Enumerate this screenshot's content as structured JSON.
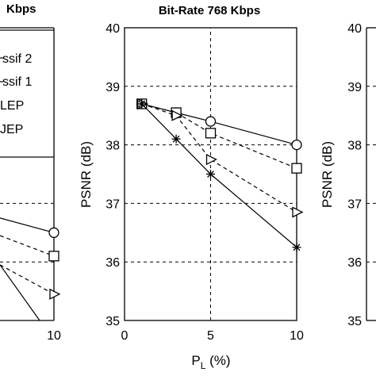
{
  "chart_data": [
    {
      "type": "line",
      "title": "Kbps",
      "xlabel": "",
      "ylabel": "",
      "x_ticks": [
        "10"
      ],
      "legend": {
        "placement": "top-right",
        "entries": [
          "ssif 2",
          "ssif 1",
          "LEP",
          "JEP"
        ]
      },
      "series": [
        {
          "marker": "circle",
          "line": "solid",
          "points": [
            [
              10,
              36.5
            ]
          ]
        },
        {
          "marker": "square",
          "line": "dashed",
          "points": [
            [
              10,
              36.1
            ]
          ]
        },
        {
          "marker": "triangle",
          "line": "dashed",
          "points": [
            [
              10,
              35.45
            ]
          ]
        },
        {
          "marker": "star",
          "line": "solid",
          "points": []
        }
      ]
    },
    {
      "type": "line",
      "title": "Bit-Rate 768 Kbps",
      "xlabel": "P_L (%)",
      "xlabel_main": "P",
      "xlabel_sub": "L",
      "xlabel_rest": " (%)",
      "ylabel": "PSNR (dB)",
      "xlim": [
        0,
        10
      ],
      "ylim": [
        35,
        40
      ],
      "x_ticks": [
        "0",
        "5",
        "10"
      ],
      "y_ticks": [
        "35",
        "36",
        "37",
        "38",
        "39",
        "40"
      ],
      "grid": true,
      "series": [
        {
          "marker": "circle",
          "line": "solid",
          "points": [
            [
              1,
              38.7
            ],
            [
              3,
              38.55
            ],
            [
              5,
              38.4
            ],
            [
              10,
              38.0
            ]
          ]
        },
        {
          "marker": "square",
          "line": "dashed",
          "points": [
            [
              1,
              38.7
            ],
            [
              3,
              38.55
            ],
            [
              5,
              38.2
            ],
            [
              10,
              37.6
            ]
          ]
        },
        {
          "marker": "triangle",
          "line": "dashed",
          "points": [
            [
              1,
              38.7
            ],
            [
              3,
              38.5
            ],
            [
              5,
              37.75
            ],
            [
              10,
              36.85
            ]
          ]
        },
        {
          "marker": "star",
          "line": "solid",
          "points": [
            [
              1,
              38.7
            ],
            [
              3,
              38.1
            ],
            [
              5,
              37.5
            ],
            [
              10,
              36.25
            ]
          ]
        }
      ]
    },
    {
      "type": "line",
      "title": "",
      "xlabel": "",
      "ylabel": "PSNR (dB)",
      "ylim": [
        35,
        40
      ],
      "y_ticks": [
        "35",
        "36",
        "37",
        "38",
        "39",
        "40"
      ],
      "series": []
    }
  ]
}
